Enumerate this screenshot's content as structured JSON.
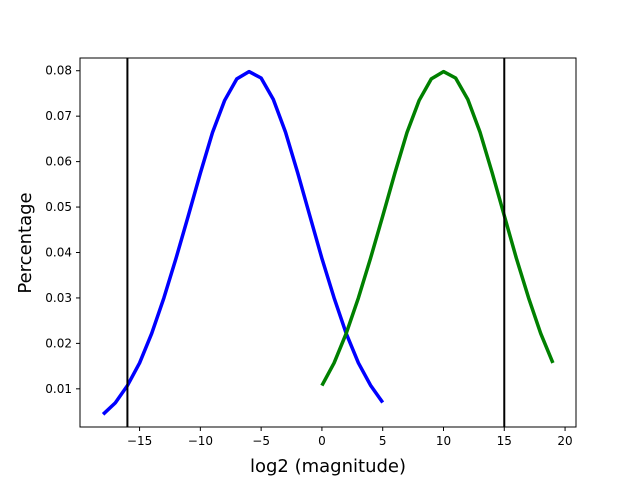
{
  "chart_data": {
    "type": "line",
    "title": "",
    "xlabel": "log2 (magnitude)",
    "ylabel": "Percentage",
    "xlim": [
      -19.9,
      20.9
    ],
    "ylim": [
      0.0016,
      0.0828
    ],
    "x_ticks": [
      -15,
      -10,
      -5,
      0,
      5,
      10,
      15,
      20
    ],
    "x_tick_labels": [
      "−15",
      "−10",
      "−5",
      "0",
      "5",
      "10",
      "15",
      "20"
    ],
    "y_ticks": [
      0.01,
      0.02,
      0.03,
      0.04,
      0.05,
      0.06,
      0.07,
      0.08
    ],
    "y_tick_labels": [
      "0.01",
      "0.02",
      "0.03",
      "0.04",
      "0.05",
      "0.06",
      "0.07",
      "0.08"
    ],
    "grid": false,
    "legend": "none",
    "series": [
      {
        "color": "#0000ff",
        "x": [
          -18,
          -17,
          -16,
          -15,
          -14,
          -13,
          -12,
          -11,
          -10,
          -9,
          -8,
          -7,
          -6,
          -5,
          -4,
          -3,
          -2,
          -1,
          0,
          1,
          2,
          3,
          4,
          5
        ],
        "y": [
          0.0044,
          0.0069,
          0.0107,
          0.0157,
          0.0222,
          0.03,
          0.0387,
          0.048,
          0.0575,
          0.0664,
          0.0735,
          0.0782,
          0.0798,
          0.0784,
          0.0737,
          0.0665,
          0.0576,
          0.0481,
          0.0387,
          0.03,
          0.0222,
          0.0157,
          0.0108,
          0.007
        ]
      },
      {
        "color": "#008000",
        "x": [
          0,
          1,
          2,
          3,
          4,
          5,
          6,
          7,
          8,
          9,
          10,
          11,
          12,
          13,
          14,
          15,
          16,
          17,
          18,
          19
        ],
        "y": [
          0.0107,
          0.0157,
          0.0222,
          0.03,
          0.0387,
          0.048,
          0.0575,
          0.0664,
          0.0735,
          0.0782,
          0.0798,
          0.0784,
          0.0737,
          0.0665,
          0.0576,
          0.0481,
          0.0387,
          0.03,
          0.0222,
          0.0157
        ]
      }
    ],
    "vlines": [
      {
        "x": -16,
        "color": "#000000"
      },
      {
        "x": 15,
        "color": "#000000"
      }
    ]
  }
}
